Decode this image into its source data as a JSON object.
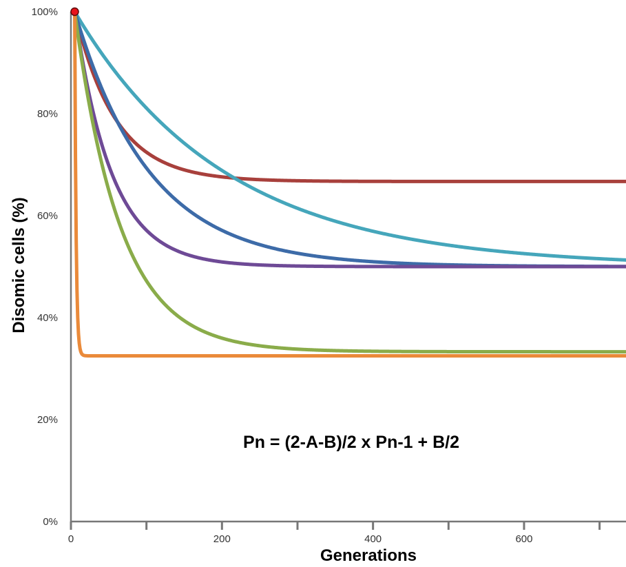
{
  "chart_data": {
    "type": "line",
    "title": "",
    "xlabel": "Generations",
    "ylabel": "Disomic cells (%)",
    "xlim": [
      0,
      735
    ],
    "ylim": [
      0,
      100
    ],
    "x_ticks": [
      0,
      200,
      400,
      600
    ],
    "x_minor_ticks": [
      100,
      300,
      500,
      700
    ],
    "y_ticks": [
      0,
      20,
      40,
      60,
      80,
      100
    ],
    "y_tick_labels": [
      "0%",
      "20%",
      "40%",
      "60%",
      "80%",
      "100%"
    ],
    "grid": false,
    "legend": "none",
    "annotation": "Pn = (2-A-B)/2 x Pn-1 + B/2",
    "start_marker": {
      "x": 5,
      "y": 100,
      "color": "#e8141b"
    },
    "series": [
      {
        "color": "#a8403c",
        "start": 100,
        "plateau": 66.7,
        "rate": 0.0185
      },
      {
        "color": "#45a6bb",
        "start": 100,
        "plateau": 50.0,
        "rate": 0.005
      },
      {
        "color": "#3d6ba8",
        "start": 100,
        "plateau": 50.0,
        "rate": 0.01
      },
      {
        "color": "#6e4a96",
        "start": 100,
        "plateau": 50.0,
        "rate": 0.0205
      },
      {
        "color": "#8aac4a",
        "start": 100,
        "plateau": 33.3,
        "rate": 0.0165
      },
      {
        "color": "#ea8a3a",
        "start": 100,
        "plateau": 32.5,
        "rate": 0.55
      }
    ]
  }
}
